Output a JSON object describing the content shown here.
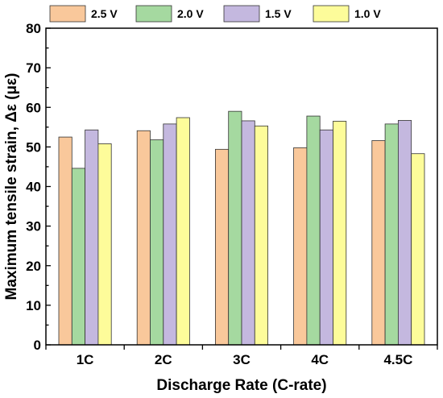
{
  "chart_data": {
    "type": "bar",
    "categories": [
      "1C",
      "2C",
      "3C",
      "4C",
      "4.5C"
    ],
    "series": [
      {
        "name": "2.5 V",
        "color": "#F9C89B",
        "values": [
          52.5,
          54.1,
          49.4,
          49.8,
          51.6
        ]
      },
      {
        "name": "2.0 V",
        "color": "#A5D9A0",
        "values": [
          44.6,
          51.8,
          59.0,
          57.8,
          55.8
        ]
      },
      {
        "name": "1.5 V",
        "color": "#C4B8DF",
        "values": [
          54.3,
          55.8,
          56.6,
          54.3,
          56.7
        ]
      },
      {
        "name": "1.0 V",
        "color": "#FDFC9A",
        "values": [
          50.8,
          57.4,
          55.3,
          56.5,
          48.3
        ]
      }
    ],
    "xlabel": "Discharge Rate (C-rate)",
    "ylabel": "Maximum tensile strain, Δε (με)",
    "ylim": [
      0,
      80
    ],
    "yticks": [
      0,
      10,
      20,
      30,
      40,
      50,
      60,
      70,
      80
    ],
    "grid": false,
    "legend_position": "top"
  }
}
